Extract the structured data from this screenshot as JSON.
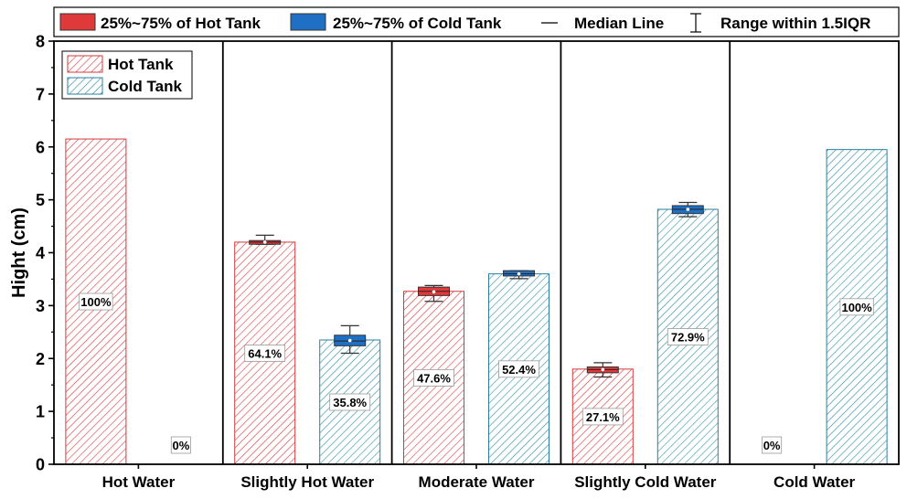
{
  "chart_data": {
    "type": "bar",
    "categories": [
      "Hot Water",
      "Slightly Hot Water",
      "Moderate Water",
      "Slightly Cold Water",
      "Cold Water"
    ],
    "ylabel": "Hight (cm)",
    "ylim": [
      0,
      8
    ],
    "yticks": [
      "0",
      "1",
      "2",
      "3",
      "4",
      "5",
      "6",
      "7",
      "8"
    ],
    "series": [
      {
        "name": "Hot Tank",
        "color": "#e0393a",
        "values": [
          6.15,
          4.2,
          3.27,
          1.8,
          0
        ],
        "percent_labels": [
          "100%",
          "64.1%",
          "47.6%",
          "27.1%",
          "0%"
        ]
      },
      {
        "name": "Cold Tank",
        "color": "#2f84c9",
        "values": [
          0,
          2.35,
          3.6,
          4.82,
          5.95
        ],
        "percent_labels": [
          "0%",
          "35.8%",
          "52.4%",
          "72.9%",
          "100%"
        ]
      }
    ],
    "boxes": {
      "Hot Tank": [
        null,
        {
          "q1": 4.16,
          "q3": 4.23,
          "median": 4.2,
          "mean": 4.2,
          "low": 4.16,
          "high": 4.33
        },
        {
          "q1": 3.19,
          "q3": 3.35,
          "median": 3.27,
          "mean": 3.26,
          "low": 3.08,
          "high": 3.38
        },
        {
          "q1": 1.73,
          "q3": 1.84,
          "median": 1.79,
          "mean": 1.79,
          "low": 1.65,
          "high": 1.92
        },
        null
      ],
      "Cold Tank": [
        null,
        {
          "q1": 2.24,
          "q3": 2.44,
          "median": 2.33,
          "mean": 2.34,
          "low": 2.1,
          "high": 2.62
        },
        {
          "q1": 3.56,
          "q3": 3.66,
          "median": 3.6,
          "mean": 3.6,
          "low": 3.51,
          "high": 3.66
        },
        {
          "q1": 4.74,
          "q3": 4.89,
          "median": 4.82,
          "mean": 4.82,
          "low": 4.68,
          "high": 4.95
        },
        null
      ]
    },
    "top_legend": {
      "hot_iqr": "25%~75% of Hot Tank",
      "cold_iqr": "25%~75% of Cold Tank",
      "median": "Median Line",
      "range": "Range within 1.5IQR",
      "hot_color": "#e0393a",
      "cold_color": "#1f6fc4"
    },
    "inner_legend": {
      "hot": "Hot Tank",
      "cold": "Cold Tank",
      "placement": "top-left"
    },
    "grid": false
  }
}
